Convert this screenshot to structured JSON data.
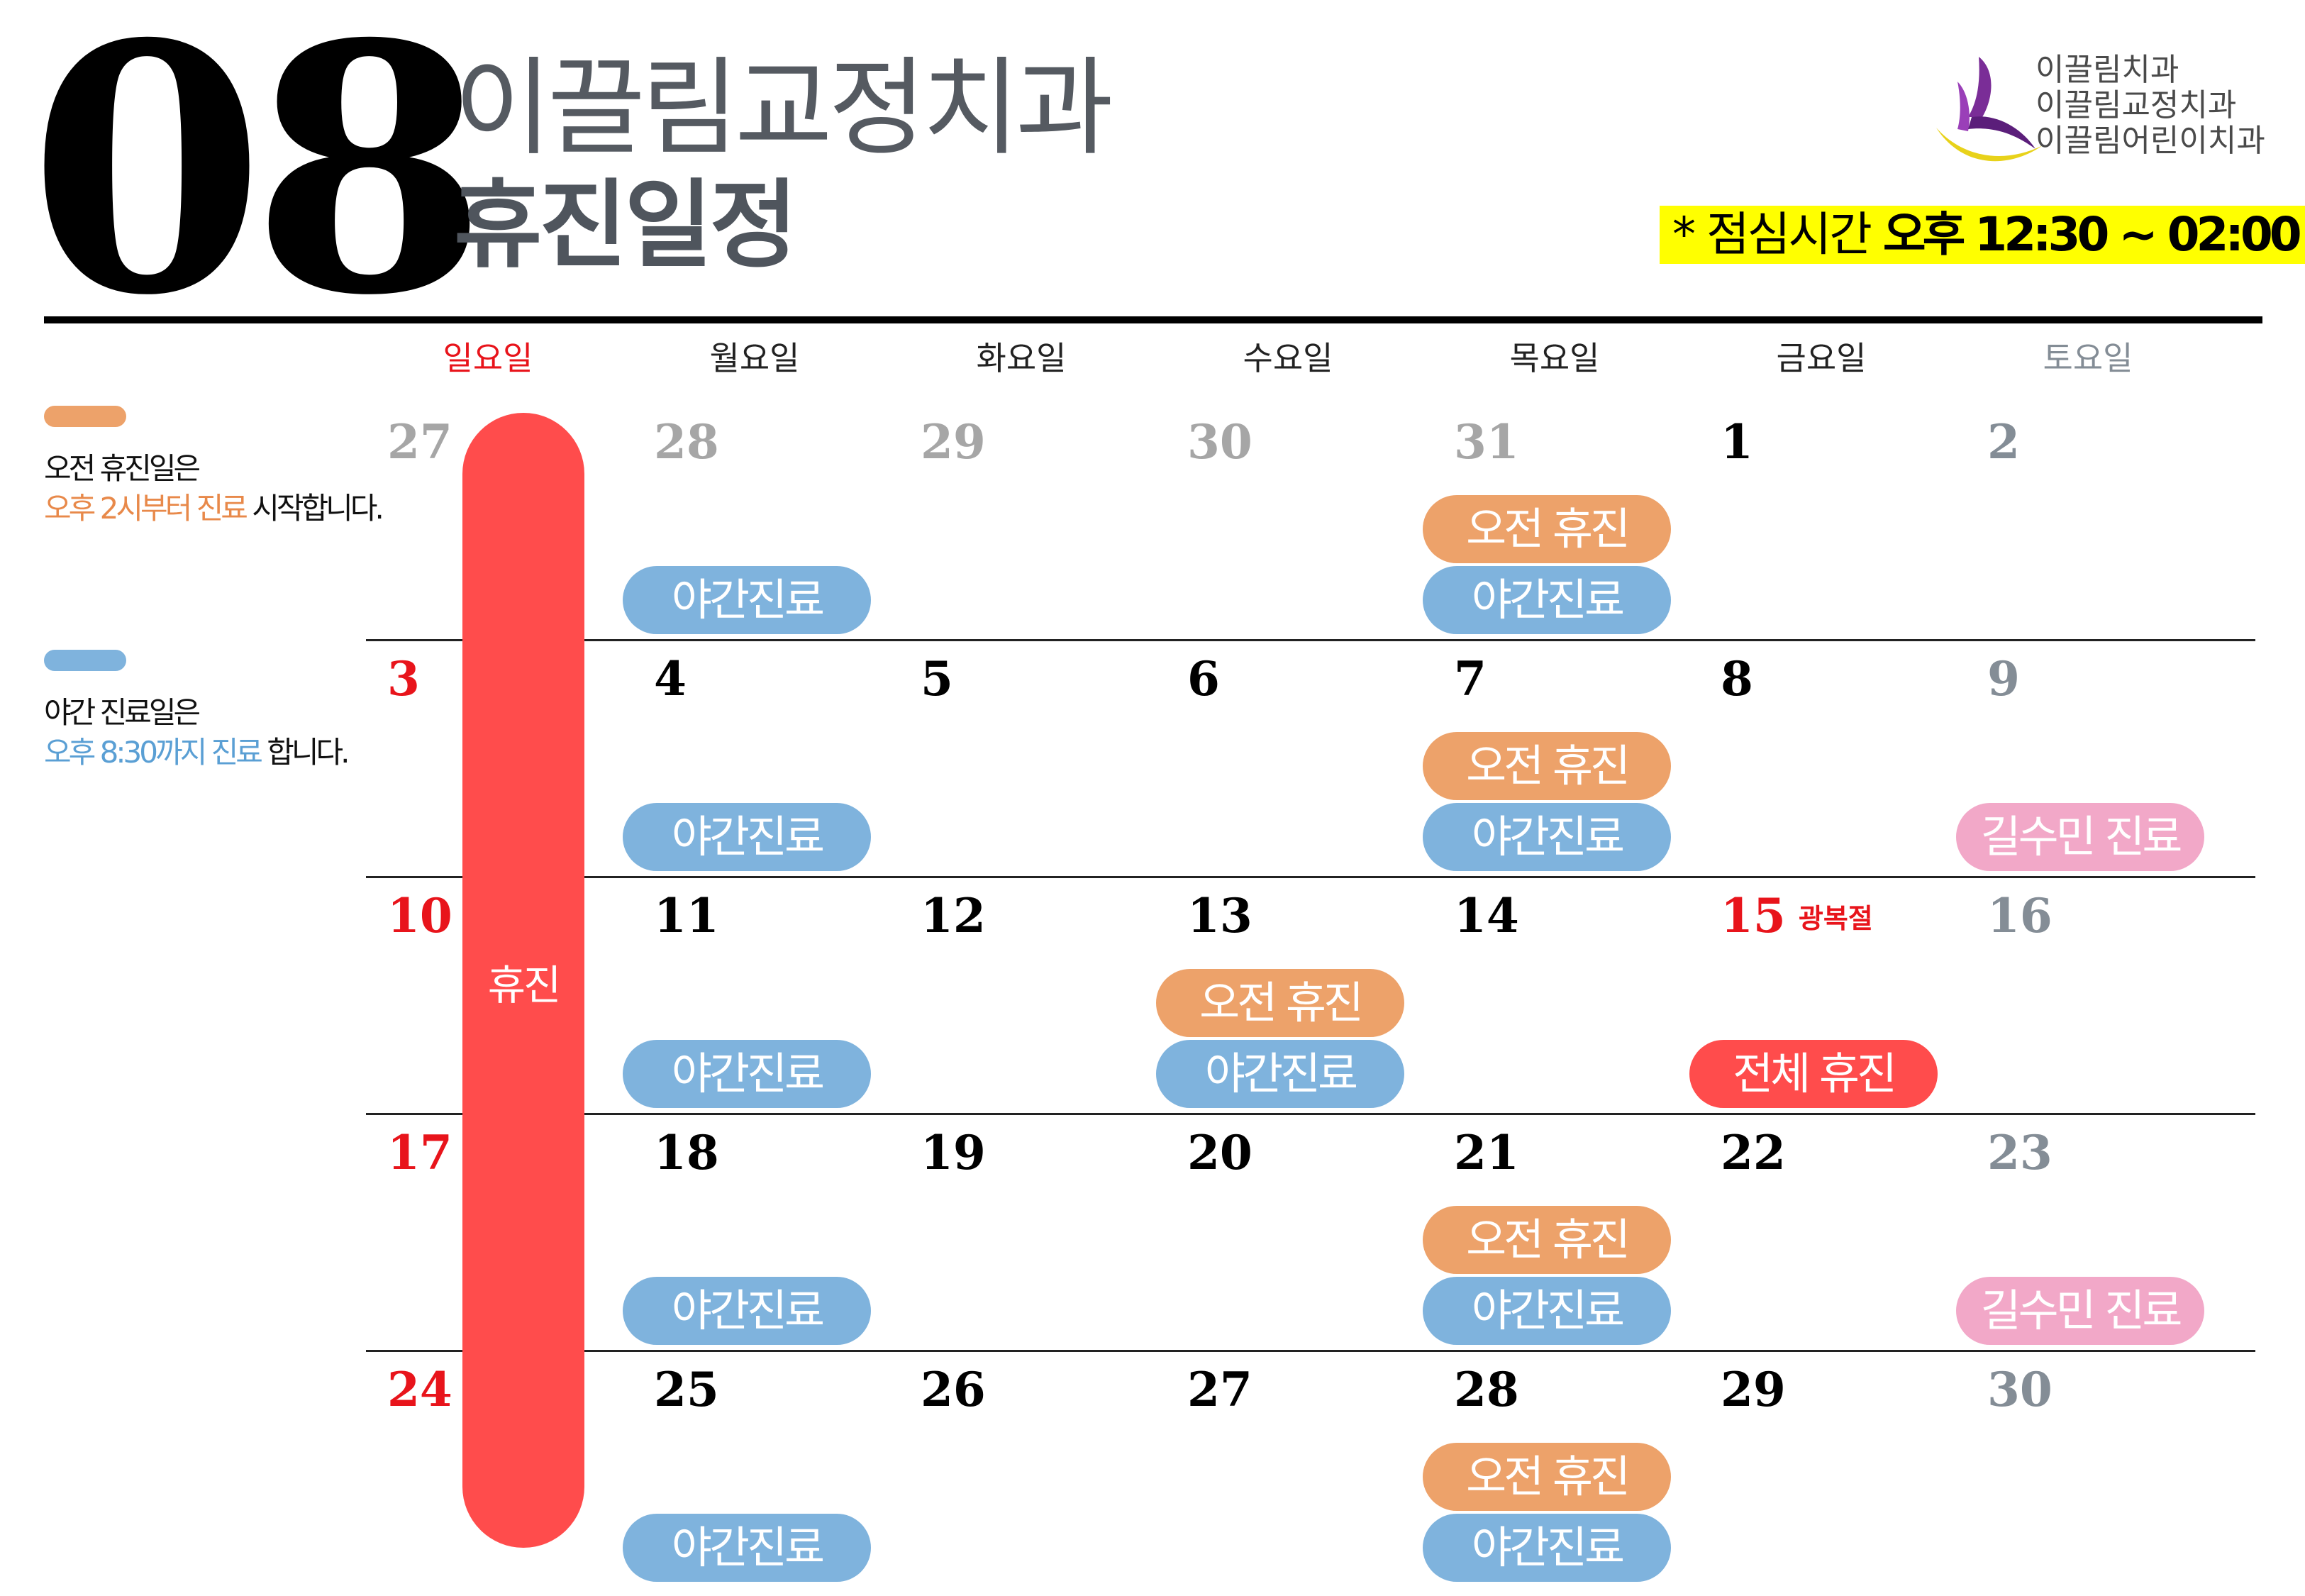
{
  "month": "08",
  "title_line1": "이끌림교정치과",
  "title_line2": "휴진일정",
  "logo": {
    "lines": [
      "이끌림치과",
      "이끌림교정치과",
      "이끌림어린이치과"
    ]
  },
  "lunch": {
    "prefix": "* 점심시간",
    "time": "오후 12:30 ~ 02:00"
  },
  "colors": {
    "orange": "#eda26a",
    "blue": "#7fb3dd",
    "pink": "#f2a8c8",
    "red": "#ff4c4c",
    "sunday_red": "#e8141b",
    "gray_num": "#a6a6a6",
    "saturday_num": "#848d96"
  },
  "legend": [
    {
      "color": "#eda26a",
      "line1": "오전 휴진일은",
      "line2_highlight": "오후 2시부터 진료",
      "line2_rest": " 시작합니다.",
      "highlight_color": "#e8894a"
    },
    {
      "color": "#7fb3dd",
      "line1": "야간 진료일은",
      "line2_highlight": "오후 8:30까지 진료",
      "line2_rest": " 합니다.",
      "highlight_color": "#5a9fd4"
    }
  ],
  "weekdays": [
    "일요일",
    "월요일",
    "화요일",
    "수요일",
    "목요일",
    "금요일",
    "토요일"
  ],
  "weeks": [
    [
      {
        "day": "27",
        "style": "gray"
      },
      {
        "day": "28",
        "style": "gray"
      },
      {
        "day": "29",
        "style": "gray"
      },
      {
        "day": "30",
        "style": "gray"
      },
      {
        "day": "31",
        "style": "gray"
      },
      {
        "day": "1",
        "style": "black"
      },
      {
        "day": "2",
        "style": "sat"
      }
    ],
    [
      {
        "day": "3",
        "style": "red"
      },
      {
        "day": "4",
        "style": "black"
      },
      {
        "day": "5",
        "style": "black"
      },
      {
        "day": "6",
        "style": "black"
      },
      {
        "day": "7",
        "style": "black"
      },
      {
        "day": "8",
        "style": "black"
      },
      {
        "day": "9",
        "style": "sat"
      }
    ],
    [
      {
        "day": "10",
        "style": "red"
      },
      {
        "day": "11",
        "style": "black"
      },
      {
        "day": "12",
        "style": "black"
      },
      {
        "day": "13",
        "style": "black"
      },
      {
        "day": "14",
        "style": "black"
      },
      {
        "day": "15",
        "style": "red",
        "holiday": "광복절"
      },
      {
        "day": "16",
        "style": "sat"
      }
    ],
    [
      {
        "day": "17",
        "style": "red"
      },
      {
        "day": "18",
        "style": "black"
      },
      {
        "day": "19",
        "style": "black"
      },
      {
        "day": "20",
        "style": "black"
      },
      {
        "day": "21",
        "style": "black"
      },
      {
        "day": "22",
        "style": "black"
      },
      {
        "day": "23",
        "style": "sat"
      }
    ],
    [
      {
        "day": "24",
        "style": "red"
      },
      {
        "day": "25",
        "style": "black"
      },
      {
        "day": "26",
        "style": "black"
      },
      {
        "day": "27",
        "style": "black"
      },
      {
        "day": "28",
        "style": "black"
      },
      {
        "day": "29",
        "style": "black"
      },
      {
        "day": "30",
        "style": "sat"
      }
    ]
  ],
  "labels": {
    "morning_off": "오전 휴진",
    "night": "야간진료",
    "doctor": "길수민 진료",
    "full_off": "전체 휴진",
    "closed": "휴진"
  },
  "events": [
    {
      "week": 0,
      "col": 4,
      "slot": "upper",
      "kind": "morning_off"
    },
    {
      "week": 0,
      "col": 4,
      "slot": "lower",
      "kind": "night"
    },
    {
      "week": 0,
      "col": 1,
      "slot": "lower",
      "kind": "night"
    },
    {
      "week": 1,
      "col": 1,
      "slot": "lower",
      "kind": "night"
    },
    {
      "week": 1,
      "col": 4,
      "slot": "upper",
      "kind": "morning_off"
    },
    {
      "week": 1,
      "col": 4,
      "slot": "lower",
      "kind": "night"
    },
    {
      "week": 1,
      "col": 6,
      "slot": "lower",
      "kind": "doctor"
    },
    {
      "week": 2,
      "col": 1,
      "slot": "lower",
      "kind": "night"
    },
    {
      "week": 2,
      "col": 3,
      "slot": "upper",
      "kind": "morning_off"
    },
    {
      "week": 2,
      "col": 3,
      "slot": "lower",
      "kind": "night"
    },
    {
      "week": 2,
      "col": 5,
      "slot": "lower",
      "kind": "full_off"
    },
    {
      "week": 3,
      "col": 1,
      "slot": "lower",
      "kind": "night"
    },
    {
      "week": 3,
      "col": 4,
      "slot": "upper",
      "kind": "morning_off"
    },
    {
      "week": 3,
      "col": 4,
      "slot": "lower",
      "kind": "night"
    },
    {
      "week": 3,
      "col": 6,
      "slot": "lower",
      "kind": "doctor"
    },
    {
      "week": 4,
      "col": 1,
      "slot": "lower",
      "kind": "night"
    },
    {
      "week": 4,
      "col": 4,
      "slot": "upper",
      "kind": "morning_off"
    },
    {
      "week": 4,
      "col": 4,
      "slot": "lower",
      "kind": "night"
    }
  ]
}
